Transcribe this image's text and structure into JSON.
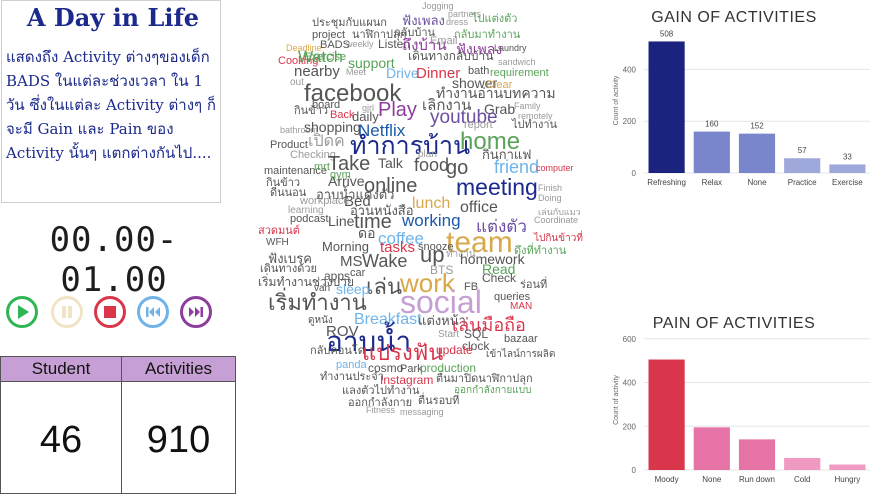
{
  "title_card": {
    "title": "A Day in Life",
    "description": "แสดงถึง Activity ต่างๆของเด็ก BADS ในแต่ละช่วงเวลา ใน 1 วัน ซึ่งในแต่ละ Activity ต่างๆ ก็จะมี Gain และ Pain ของ Activity นั้นๆ แตกต่างกันไป...."
  },
  "time_slot": "00.00-01.00",
  "controls": [
    {
      "name": "play-icon",
      "color": "#2fb552"
    },
    {
      "name": "pause-icon",
      "color": "#f0e4c4"
    },
    {
      "name": "stop-icon",
      "color": "#d9354b"
    },
    {
      "name": "previous-icon",
      "color": "#6fb3e8"
    },
    {
      "name": "next-icon",
      "color": "#8e3d9c"
    }
  ],
  "kpis": {
    "student": {
      "label": "Student",
      "value": "46"
    },
    "activities": {
      "label": "Activities",
      "value": "910"
    }
  },
  "word_cloud": [
    {
      "t": "Jogging",
      "c": "#9a9a9a"
    },
    {
      "t": "partners",
      "c": "#9a9a9a"
    },
    {
      "t": "dress",
      "c": "#9a9a9a"
    },
    {
      "t": "ประชุมกับแผนก",
      "c": "#555"
    },
    {
      "t": "ฟังเพลง",
      "c": "#6b4fa0"
    },
    {
      "t": "ไปแต่งตัว",
      "c": "#5aa35a"
    },
    {
      "t": "project",
      "c": "#555"
    },
    {
      "t": "นาฬิกาปลุก",
      "c": "#555"
    },
    {
      "t": "กลับบ้าน",
      "c": "#555"
    },
    {
      "t": "กลับมาทำงาน",
      "c": "#5aa35a"
    },
    {
      "t": "BADS",
      "c": "#555"
    },
    {
      "t": "weekly",
      "c": "#9a9a9a"
    },
    {
      "t": "Listen",
      "c": "#555"
    },
    {
      "t": "ถึงบ้าน",
      "c": "#8e3d9c"
    },
    {
      "t": "Email",
      "c": "#9a9a9a"
    },
    {
      "t": "ฟังเพลง",
      "c": "#8e3d9c"
    },
    {
      "t": "Laundry",
      "c": "#555"
    },
    {
      "t": "Deadline",
      "c": "#d9a84b"
    },
    {
      "t": "Exercise",
      "c": "#5aa35a"
    },
    {
      "t": "Cooking",
      "c": "#d9354b"
    },
    {
      "t": "Watch",
      "c": "#5aa35a"
    },
    {
      "t": "support",
      "c": "#5aa35a"
    },
    {
      "t": "เดินทางกลับบ้าน",
      "c": "#555"
    },
    {
      "t": "sandwich",
      "c": "#9a9a9a"
    },
    {
      "t": "out",
      "c": "#9a9a9a"
    },
    {
      "t": "nearby",
      "c": "#555"
    },
    {
      "t": "Meet",
      "c": "#9a9a9a"
    },
    {
      "t": "Drive",
      "c": "#6fb3e8"
    },
    {
      "t": "Dinner",
      "c": "#d9354b"
    },
    {
      "t": "bath",
      "c": "#555"
    },
    {
      "t": "requirement",
      "c": "#5aa35a"
    },
    {
      "t": "shower",
      "c": "#555"
    },
    {
      "t": "Clear",
      "c": "#d9a84b"
    },
    {
      "t": "facebook",
      "c": "#555"
    },
    {
      "t": "ทำงานอ่านบทความ",
      "c": "#555"
    },
    {
      "t": "board",
      "c": "#555"
    },
    {
      "t": "girl",
      "c": "#9a9a9a"
    },
    {
      "t": "Play",
      "c": "#8e3d9c"
    },
    {
      "t": "เลิกงาน",
      "c": "#555"
    },
    {
      "t": "Grab",
      "c": "#555"
    },
    {
      "t": "Family",
      "c": "#9a9a9a"
    },
    {
      "t": "กินข้าว",
      "c": "#555"
    },
    {
      "t": "Back",
      "c": "#d9354b"
    },
    {
      "t": "daily",
      "c": "#555"
    },
    {
      "t": "youtube",
      "c": "#6b4fa0"
    },
    {
      "t": "remotely",
      "c": "#9a9a9a"
    },
    {
      "t": "bathroom",
      "c": "#9a9a9a"
    },
    {
      "t": "shopping",
      "c": "#555"
    },
    {
      "t": "Netflix",
      "c": "#1b5aa6"
    },
    {
      "t": "report",
      "c": "#9a9a9a"
    },
    {
      "t": "ไปทำงาน",
      "c": "#555"
    },
    {
      "t": "ทำการบ้าน",
      "c": "#1b2a8c"
    },
    {
      "t": "home",
      "c": "#5aa35a"
    },
    {
      "t": "เปิดค",
      "c": "#9a9a9a"
    },
    {
      "t": "Product",
      "c": "#555"
    },
    {
      "t": "Checking",
      "c": "#9a9a9a"
    },
    {
      "t": "plan",
      "c": "#9a9a9a"
    },
    {
      "t": "กินกาแฟ",
      "c": "#555"
    },
    {
      "t": "Take",
      "c": "#555"
    },
    {
      "t": "Talk",
      "c": "#555"
    },
    {
      "t": "food",
      "c": "#555"
    },
    {
      "t": "go",
      "c": "#555"
    },
    {
      "t": "friend",
      "c": "#6fb3e8"
    },
    {
      "t": "maintenance",
      "c": "#555"
    },
    {
      "t": "mrt",
      "c": "#5aa35a"
    },
    {
      "t": "gym",
      "c": "#5aa35a"
    },
    {
      "t": "Arrive",
      "c": "#555"
    },
    {
      "t": "online",
      "c": "#555"
    },
    {
      "t": "meeting",
      "c": "#1b2a8c"
    },
    {
      "t": "computer",
      "c": "#d9354b"
    },
    {
      "t": "กินข้าว",
      "c": "#555"
    },
    {
      "t": "Finish",
      "c": "#9a9a9a"
    },
    {
      "t": "ดีนนอน",
      "c": "#555"
    },
    {
      "t": "อาบน้ำแต่งตัว",
      "c": "#555"
    },
    {
      "t": "Bed",
      "c": "#555"
    },
    {
      "t": "lunch",
      "c": "#d9a84b"
    },
    {
      "t": "Doing",
      "c": "#9a9a9a"
    },
    {
      "t": "workplace",
      "c": "#9a9a9a"
    },
    {
      "t": "อ่านหนังสือ",
      "c": "#555"
    },
    {
      "t": "office",
      "c": "#555"
    },
    {
      "t": "learning",
      "c": "#9a9a9a"
    },
    {
      "t": "เล่นกับแมว",
      "c": "#9a9a9a"
    },
    {
      "t": "Line",
      "c": "#555"
    },
    {
      "t": "podcast",
      "c": "#555"
    },
    {
      "t": "time",
      "c": "#555"
    },
    {
      "t": "working",
      "c": "#1b5aa6"
    },
    {
      "t": "แต่งตัว",
      "c": "#6b4fa0"
    },
    {
      "t": "Coordinate",
      "c": "#9a9a9a"
    },
    {
      "t": "สวดมนต์",
      "c": "#d9354b"
    },
    {
      "t": "ดอ",
      "c": "#555"
    },
    {
      "t": "coffee",
      "c": "#6fb3e8"
    },
    {
      "t": "team",
      "c": "#d9a84b"
    },
    {
      "t": "ไปกินข้าวที่",
      "c": "#d9354b"
    },
    {
      "t": "WFH",
      "c": "#555"
    },
    {
      "t": "Morning",
      "c": "#555"
    },
    {
      "t": "tasks",
      "c": "#d9354b"
    },
    {
      "t": "snooze",
      "c": "#555"
    },
    {
      "t": "ทำงาน",
      "c": "#9a9a9a"
    },
    {
      "t": "ดึงที่ทำงาน",
      "c": "#5aa35a"
    },
    {
      "t": "ฟังเบรค",
      "c": "#555"
    },
    {
      "t": "MS",
      "c": "#555"
    },
    {
      "t": "Wake",
      "c": "#555"
    },
    {
      "t": "up",
      "c": "#555"
    },
    {
      "t": "homework",
      "c": "#555"
    },
    {
      "t": "เดินทางด้วย",
      "c": "#555"
    },
    {
      "t": "apps",
      "c": "#555"
    },
    {
      "t": "car",
      "c": "#555"
    },
    {
      "t": "BTS",
      "c": "#9a9a9a"
    },
    {
      "t": "Read",
      "c": "#5aa35a"
    },
    {
      "t": "เริ่มทำงานช่วงบ่าย",
      "c": "#555"
    },
    {
      "t": "เล่น",
      "c": "#555"
    },
    {
      "t": "work",
      "c": "#d9a84b"
    },
    {
      "t": "Check",
      "c": "#555"
    },
    {
      "t": "ร่อนที่",
      "c": "#555"
    },
    {
      "t": "van",
      "c": "#555"
    },
    {
      "t": "sleep",
      "c": "#6fb3e8"
    },
    {
      "t": "FB",
      "c": "#555"
    },
    {
      "t": "เริ่มทำงาน",
      "c": "#555"
    },
    {
      "t": "social",
      "c": "#c6a0d4"
    },
    {
      "t": "queries",
      "c": "#555"
    },
    {
      "t": "MAN",
      "c": "#d9354b"
    },
    {
      "t": "Breakfast",
      "c": "#6fb3e8"
    },
    {
      "t": "ดูหนัง",
      "c": "#555"
    },
    {
      "t": "แต่งหน้า",
      "c": "#555"
    },
    {
      "t": "เล่นมือถือ",
      "c": "#d9354b"
    },
    {
      "t": "อาบน้ำ",
      "c": "#1b2a8c"
    },
    {
      "t": "SQL",
      "c": "#555"
    },
    {
      "t": "ROV",
      "c": "#555"
    },
    {
      "t": "Start",
      "c": "#9a9a9a"
    },
    {
      "t": "bazaar",
      "c": "#555"
    },
    {
      "t": "แปรงฟัน",
      "c": "#d9354b"
    },
    {
      "t": "clock",
      "c": "#555"
    },
    {
      "t": "กลับคอนโด",
      "c": "#555"
    },
    {
      "t": "update",
      "c": "#d9354b"
    },
    {
      "t": "เข้าไลน์การผลิต",
      "c": "#555"
    },
    {
      "t": "panda",
      "c": "#6fb3e8"
    },
    {
      "t": "cosmo",
      "c": "#555"
    },
    {
      "t": "Park",
      "c": "#555"
    },
    {
      "t": "production",
      "c": "#5aa35a"
    },
    {
      "t": "ทำงานประจำ",
      "c": "#555"
    },
    {
      "t": "Instagram",
      "c": "#d9354b"
    },
    {
      "t": "ตื่นมาปิดนาฬิกาปลุก",
      "c": "#555"
    },
    {
      "t": "แลงตัวไปทำงาน",
      "c": "#555"
    },
    {
      "t": "ออกกำลังกายแบบ",
      "c": "#5aa35a"
    },
    {
      "t": "ออกกำลังกาย",
      "c": "#555"
    },
    {
      "t": "ตื่นรอบที่",
      "c": "#555"
    },
    {
      "t": "Fitness",
      "c": "#9a9a9a"
    },
    {
      "t": "messaging",
      "c": "#9a9a9a"
    }
  ],
  "gain_chart": {
    "title": "GAIN OF ACTIVITIES",
    "ylabel": "Count of activity",
    "chart_data": {
      "type": "bar",
      "title": "GAIN OF ACTIVITIES",
      "categories": [
        "Refreshing",
        "Relax",
        "None",
        "Practice",
        "Exercise"
      ],
      "values": [
        508,
        160,
        152,
        57,
        33
      ],
      "ylabel": "Count of activity",
      "yticks": [
        0,
        200,
        400
      ],
      "ylim": [
        0,
        560
      ],
      "data_labels": true,
      "colors": [
        "#1a237e",
        "#7986cb",
        "#7986cb",
        "#9fa8da",
        "#9fa8da"
      ]
    }
  },
  "pain_chart": {
    "title": "PAIN OF ACTIVITIES",
    "ylabel": "Count of activity",
    "chart_data": {
      "type": "bar",
      "title": "PAIN OF ACTIVITIES",
      "categories": [
        "Moody",
        "None",
        "Run down",
        "Cold",
        "Hungry"
      ],
      "values": [
        505,
        195,
        140,
        55,
        25
      ],
      "ylabel": "Count of activity",
      "yticks": [
        0,
        200,
        400,
        600
      ],
      "ylim": [
        0,
        640
      ],
      "data_labels": false,
      "colors": [
        "#d9354b",
        "#e573a6",
        "#e573a6",
        "#f09ac3",
        "#f09ac3"
      ]
    }
  }
}
